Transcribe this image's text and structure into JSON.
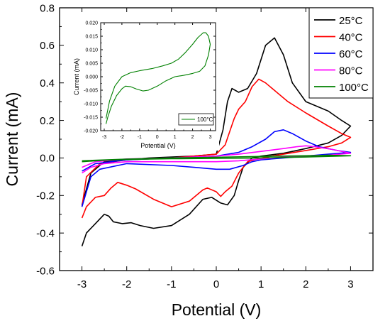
{
  "chart_data": [
    {
      "type": "line",
      "title": "",
      "xlabel": "Potential (V)",
      "ylabel": "Current (mA)",
      "xlim": [
        -3.5,
        3.5
      ],
      "ylim": [
        -0.6,
        0.8
      ],
      "xticks": [
        "-3",
        "-2",
        "-1",
        "0",
        "1",
        "2",
        "3"
      ],
      "yticks": [
        "-0.6",
        "-0.4",
        "-0.2",
        "0.0",
        "0.2",
        "0.4",
        "0.6",
        "0.8"
      ],
      "grid": false,
      "legend": "top-right",
      "series": [
        {
          "name": "25°C",
          "color": "#000000",
          "points": [
            [
              -3.0,
              -0.47
            ],
            [
              -2.9,
              -0.4
            ],
            [
              -2.7,
              -0.35
            ],
            [
              -2.5,
              -0.3
            ],
            [
              -2.4,
              -0.31
            ],
            [
              -2.3,
              -0.34
            ],
            [
              -2.1,
              -0.35
            ],
            [
              -1.9,
              -0.345
            ],
            [
              -1.7,
              -0.36
            ],
            [
              -1.4,
              -0.375
            ],
            [
              -1.0,
              -0.36
            ],
            [
              -0.6,
              -0.3
            ],
            [
              -0.3,
              -0.22
            ],
            [
              -0.1,
              -0.21
            ],
            [
              0.1,
              -0.24
            ],
            [
              0.25,
              -0.25
            ],
            [
              0.4,
              -0.2
            ],
            [
              0.5,
              -0.12
            ],
            [
              0.6,
              -0.05
            ],
            [
              0.8,
              0.0
            ],
            [
              1.0,
              0.01
            ],
            [
              1.5,
              0.025
            ],
            [
              2.0,
              0.05
            ],
            [
              2.5,
              0.08
            ],
            [
              2.8,
              0.12
            ],
            [
              3.0,
              0.17
            ],
            [
              2.8,
              0.2
            ],
            [
              2.5,
              0.25
            ],
            [
              2.0,
              0.3
            ],
            [
              1.7,
              0.4
            ],
            [
              1.5,
              0.55
            ],
            [
              1.3,
              0.64
            ],
            [
              1.1,
              0.6
            ],
            [
              0.9,
              0.45
            ],
            [
              0.7,
              0.37
            ],
            [
              0.5,
              0.35
            ],
            [
              0.35,
              0.37
            ],
            [
              0.25,
              0.3
            ],
            [
              0.15,
              0.15
            ],
            [
              0.0,
              0.02
            ],
            [
              -0.5,
              0.01
            ],
            [
              -1.5,
              0.0
            ],
            [
              -2.5,
              -0.02
            ],
            [
              -2.8,
              -0.08
            ],
            [
              -3.0,
              -0.25
            ]
          ]
        },
        {
          "name": "40°C",
          "color": "#ff0000",
          "points": [
            [
              -3.0,
              -0.32
            ],
            [
              -2.9,
              -0.26
            ],
            [
              -2.7,
              -0.21
            ],
            [
              -2.5,
              -0.2
            ],
            [
              -2.35,
              -0.16
            ],
            [
              -2.2,
              -0.13
            ],
            [
              -2.0,
              -0.145
            ],
            [
              -1.8,
              -0.165
            ],
            [
              -1.4,
              -0.22
            ],
            [
              -1.0,
              -0.26
            ],
            [
              -0.6,
              -0.23
            ],
            [
              -0.3,
              -0.17
            ],
            [
              -0.2,
              -0.16
            ],
            [
              0.0,
              -0.18
            ],
            [
              0.1,
              -0.205
            ],
            [
              0.2,
              -0.18
            ],
            [
              0.35,
              -0.15
            ],
            [
              0.5,
              -0.08
            ],
            [
              0.7,
              -0.02
            ],
            [
              1.0,
              0.0
            ],
            [
              1.5,
              0.02
            ],
            [
              2.0,
              0.04
            ],
            [
              2.5,
              0.06
            ],
            [
              2.8,
              0.08
            ],
            [
              3.0,
              0.11
            ],
            [
              2.8,
              0.13
            ],
            [
              2.5,
              0.17
            ],
            [
              2.0,
              0.24
            ],
            [
              1.6,
              0.3
            ],
            [
              1.3,
              0.36
            ],
            [
              1.1,
              0.4
            ],
            [
              0.95,
              0.42
            ],
            [
              0.8,
              0.38
            ],
            [
              0.65,
              0.3
            ],
            [
              0.5,
              0.26
            ],
            [
              0.4,
              0.21
            ],
            [
              0.3,
              0.14
            ],
            [
              0.2,
              0.07
            ],
            [
              0.0,
              0.02
            ],
            [
              -1.0,
              0.0
            ],
            [
              -2.0,
              -0.01
            ],
            [
              -2.6,
              -0.03
            ],
            [
              -2.9,
              -0.1
            ],
            [
              -3.0,
              -0.26
            ]
          ]
        },
        {
          "name": "60°C",
          "color": "#0000ff",
          "points": [
            [
              -3.0,
              -0.26
            ],
            [
              -2.9,
              -0.18
            ],
            [
              -2.8,
              -0.1
            ],
            [
              -2.6,
              -0.06
            ],
            [
              -2.0,
              -0.03
            ],
            [
              -1.0,
              -0.04
            ],
            [
              -0.5,
              -0.05
            ],
            [
              0.0,
              -0.06
            ],
            [
              0.3,
              -0.06
            ],
            [
              0.6,
              -0.04
            ],
            [
              0.8,
              -0.02
            ],
            [
              1.0,
              -0.01
            ],
            [
              1.5,
              0.0
            ],
            [
              2.0,
              0.01
            ],
            [
              2.5,
              0.02
            ],
            [
              3.0,
              0.03
            ],
            [
              2.7,
              0.04
            ],
            [
              2.3,
              0.06
            ],
            [
              2.0,
              0.09
            ],
            [
              1.7,
              0.13
            ],
            [
              1.5,
              0.15
            ],
            [
              1.3,
              0.14
            ],
            [
              1.1,
              0.1
            ],
            [
              0.8,
              0.06
            ],
            [
              0.5,
              0.03
            ],
            [
              0.0,
              0.01
            ],
            [
              -1.0,
              0.0
            ],
            [
              -2.0,
              -0.01
            ],
            [
              -2.7,
              -0.03
            ],
            [
              -3.0,
              -0.07
            ]
          ]
        },
        {
          "name": "80°C",
          "color": "#ff00ff",
          "points": [
            [
              -3.0,
              -0.08
            ],
            [
              -2.8,
              -0.05
            ],
            [
              -2.5,
              -0.03
            ],
            [
              -2.0,
              -0.02
            ],
            [
              -1.0,
              -0.02
            ],
            [
              0.0,
              -0.02
            ],
            [
              0.5,
              -0.015
            ],
            [
              1.0,
              -0.005
            ],
            [
              1.5,
              0.005
            ],
            [
              2.0,
              0.01
            ],
            [
              2.5,
              0.015
            ],
            [
              3.0,
              0.025
            ],
            [
              2.6,
              0.045
            ],
            [
              2.2,
              0.06
            ],
            [
              2.0,
              0.065
            ],
            [
              1.8,
              0.06
            ],
            [
              1.5,
              0.05
            ],
            [
              1.0,
              0.035
            ],
            [
              0.5,
              0.02
            ],
            [
              0.0,
              0.01
            ],
            [
              -1.0,
              0.0
            ],
            [
              -2.0,
              -0.005
            ],
            [
              -2.7,
              -0.02
            ],
            [
              -3.0,
              -0.05
            ]
          ]
        },
        {
          "name": "100°C",
          "color": "#008000",
          "points": [
            [
              -3.0,
              -0.02
            ],
            [
              -2.5,
              -0.012
            ],
            [
              -2.0,
              -0.008
            ],
            [
              -1.0,
              -0.004
            ],
            [
              0.0,
              -0.002
            ],
            [
              1.0,
              0.0
            ],
            [
              2.0,
              0.005
            ],
            [
              3.0,
              0.012
            ],
            [
              2.5,
              0.015
            ],
            [
              2.0,
              0.012
            ],
            [
              1.0,
              0.008
            ],
            [
              0.0,
              0.004
            ],
            [
              -1.0,
              0.0
            ],
            [
              -2.0,
              -0.006
            ],
            [
              -3.0,
              -0.015
            ]
          ]
        }
      ]
    },
    {
      "type": "line",
      "title": "",
      "xlabel": "Potential (V)",
      "ylabel": "Current (mA)",
      "xlim": [
        -3.2,
        3.3
      ],
      "ylim": [
        -0.02,
        0.02
      ],
      "xticks": [
        "-3",
        "-2",
        "-1",
        "0",
        "1",
        "2",
        "3"
      ],
      "yticks": [
        "-0.020",
        "-0.015",
        "-0.010",
        "-0.005",
        "0.000",
        "0.005",
        "0.010",
        "0.015",
        "0.020"
      ],
      "grid": false,
      "legend": "bottom-right",
      "series": [
        {
          "name": "100°C",
          "color": "#008000",
          "points": [
            [
              -2.9,
              -0.0175
            ],
            [
              -2.8,
              -0.015
            ],
            [
              -2.6,
              -0.011
            ],
            [
              -2.3,
              -0.007
            ],
            [
              -2.0,
              -0.0045
            ],
            [
              -1.8,
              -0.0035
            ],
            [
              -1.5,
              -0.0037
            ],
            [
              -1.2,
              -0.0045
            ],
            [
              -0.8,
              -0.0053
            ],
            [
              -0.5,
              -0.005
            ],
            [
              0.0,
              -0.0035
            ],
            [
              0.5,
              -0.0015
            ],
            [
              1.0,
              0.0
            ],
            [
              1.5,
              0.0005
            ],
            [
              2.0,
              0.0012
            ],
            [
              2.4,
              0.002
            ],
            [
              2.7,
              0.004
            ],
            [
              2.9,
              0.008
            ],
            [
              3.0,
              0.012
            ],
            [
              2.9,
              0.015
            ],
            [
              2.75,
              0.0163
            ],
            [
              2.6,
              0.0163
            ],
            [
              2.3,
              0.0145
            ],
            [
              2.0,
              0.012
            ],
            [
              1.6,
              0.009
            ],
            [
              1.2,
              0.0065
            ],
            [
              0.8,
              0.005
            ],
            [
              0.3,
              0.004
            ],
            [
              -0.3,
              0.003
            ],
            [
              -1.0,
              0.0022
            ],
            [
              -1.5,
              0.0015
            ],
            [
              -2.0,
              0.0
            ],
            [
              -2.4,
              -0.0035
            ],
            [
              -2.7,
              -0.009
            ],
            [
              -2.9,
              -0.0155
            ]
          ]
        }
      ]
    }
  ]
}
